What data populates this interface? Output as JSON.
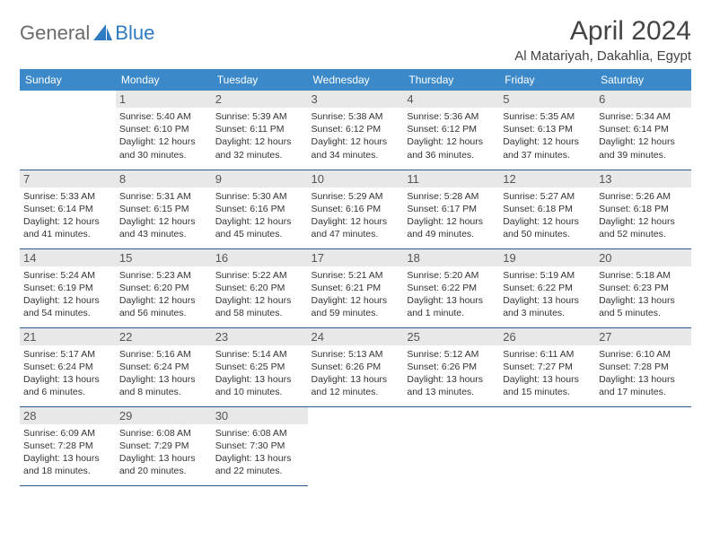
{
  "logo": {
    "general": "General",
    "blue": "Blue"
  },
  "title": "April 2024",
  "location": "Al Matariyah, Dakahlia, Egypt",
  "header_bg": "#3b89c9",
  "weekdays": [
    "Sunday",
    "Monday",
    "Tuesday",
    "Wednesday",
    "Thursday",
    "Friday",
    "Saturday"
  ],
  "grid": [
    [
      null,
      {
        "n": "1",
        "sr": "5:40 AM",
        "ss": "6:10 PM",
        "dl": "12 hours and 30 minutes."
      },
      {
        "n": "2",
        "sr": "5:39 AM",
        "ss": "6:11 PM",
        "dl": "12 hours and 32 minutes."
      },
      {
        "n": "3",
        "sr": "5:38 AM",
        "ss": "6:12 PM",
        "dl": "12 hours and 34 minutes."
      },
      {
        "n": "4",
        "sr": "5:36 AM",
        "ss": "6:12 PM",
        "dl": "12 hours and 36 minutes."
      },
      {
        "n": "5",
        "sr": "5:35 AM",
        "ss": "6:13 PM",
        "dl": "12 hours and 37 minutes."
      },
      {
        "n": "6",
        "sr": "5:34 AM",
        "ss": "6:14 PM",
        "dl": "12 hours and 39 minutes."
      }
    ],
    [
      {
        "n": "7",
        "sr": "5:33 AM",
        "ss": "6:14 PM",
        "dl": "12 hours and 41 minutes."
      },
      {
        "n": "8",
        "sr": "5:31 AM",
        "ss": "6:15 PM",
        "dl": "12 hours and 43 minutes."
      },
      {
        "n": "9",
        "sr": "5:30 AM",
        "ss": "6:16 PM",
        "dl": "12 hours and 45 minutes."
      },
      {
        "n": "10",
        "sr": "5:29 AM",
        "ss": "6:16 PM",
        "dl": "12 hours and 47 minutes."
      },
      {
        "n": "11",
        "sr": "5:28 AM",
        "ss": "6:17 PM",
        "dl": "12 hours and 49 minutes."
      },
      {
        "n": "12",
        "sr": "5:27 AM",
        "ss": "6:18 PM",
        "dl": "12 hours and 50 minutes."
      },
      {
        "n": "13",
        "sr": "5:26 AM",
        "ss": "6:18 PM",
        "dl": "12 hours and 52 minutes."
      }
    ],
    [
      {
        "n": "14",
        "sr": "5:24 AM",
        "ss": "6:19 PM",
        "dl": "12 hours and 54 minutes."
      },
      {
        "n": "15",
        "sr": "5:23 AM",
        "ss": "6:20 PM",
        "dl": "12 hours and 56 minutes."
      },
      {
        "n": "16",
        "sr": "5:22 AM",
        "ss": "6:20 PM",
        "dl": "12 hours and 58 minutes."
      },
      {
        "n": "17",
        "sr": "5:21 AM",
        "ss": "6:21 PM",
        "dl": "12 hours and 59 minutes."
      },
      {
        "n": "18",
        "sr": "5:20 AM",
        "ss": "6:22 PM",
        "dl": "13 hours and 1 minute."
      },
      {
        "n": "19",
        "sr": "5:19 AM",
        "ss": "6:22 PM",
        "dl": "13 hours and 3 minutes."
      },
      {
        "n": "20",
        "sr": "5:18 AM",
        "ss": "6:23 PM",
        "dl": "13 hours and 5 minutes."
      }
    ],
    [
      {
        "n": "21",
        "sr": "5:17 AM",
        "ss": "6:24 PM",
        "dl": "13 hours and 6 minutes."
      },
      {
        "n": "22",
        "sr": "5:16 AM",
        "ss": "6:24 PM",
        "dl": "13 hours and 8 minutes."
      },
      {
        "n": "23",
        "sr": "5:14 AM",
        "ss": "6:25 PM",
        "dl": "13 hours and 10 minutes."
      },
      {
        "n": "24",
        "sr": "5:13 AM",
        "ss": "6:26 PM",
        "dl": "13 hours and 12 minutes."
      },
      {
        "n": "25",
        "sr": "5:12 AM",
        "ss": "6:26 PM",
        "dl": "13 hours and 13 minutes."
      },
      {
        "n": "26",
        "sr": "6:11 AM",
        "ss": "7:27 PM",
        "dl": "13 hours and 15 minutes."
      },
      {
        "n": "27",
        "sr": "6:10 AM",
        "ss": "7:28 PM",
        "dl": "13 hours and 17 minutes."
      }
    ],
    [
      {
        "n": "28",
        "sr": "6:09 AM",
        "ss": "7:28 PM",
        "dl": "13 hours and 18 minutes."
      },
      {
        "n": "29",
        "sr": "6:08 AM",
        "ss": "7:29 PM",
        "dl": "13 hours and 20 minutes."
      },
      {
        "n": "30",
        "sr": "6:08 AM",
        "ss": "7:30 PM",
        "dl": "13 hours and 22 minutes."
      },
      null,
      null,
      null,
      null
    ]
  ],
  "labels": {
    "sunrise": "Sunrise:",
    "sunset": "Sunset:",
    "daylight": "Daylight:"
  }
}
